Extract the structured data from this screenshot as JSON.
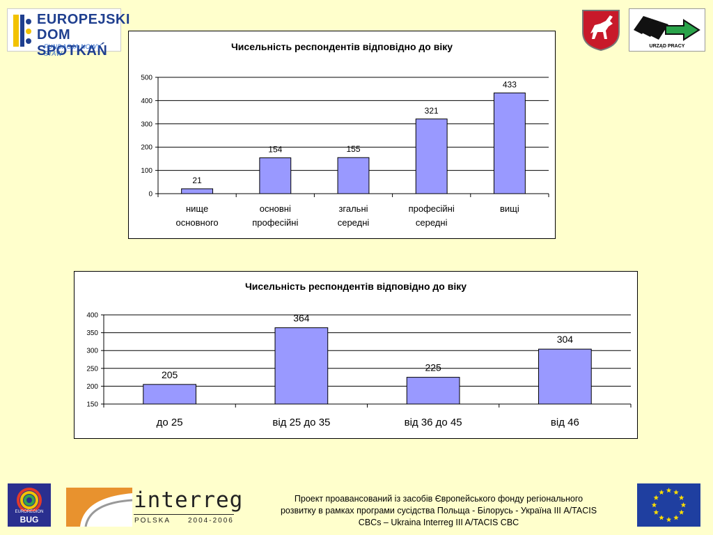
{
  "logos": {
    "eds": {
      "line1": "EUROPEJSKI",
      "line2": "DOM SPOTKAŃ",
      "line3": "FUNDACJA NOWY STAW"
    },
    "urzad": {
      "caption": "URZĄD PRACY"
    },
    "euroregion": {
      "line1": "EUROREGION",
      "line2": "BUG"
    },
    "interreg": {
      "word": "interreg",
      "polska": "POLSKA",
      "years": "2004-2006"
    }
  },
  "footer": {
    "line1": "Проект проавансований із засобів Європейського фонду регіонального",
    "line2": "розвитку в рамках програми сусідства Польща - Білорусь - Україна ІІІ A/TACIS",
    "line3": "CBCs – Ukraina Interreg III A/TACIS CBC"
  },
  "chart_data": [
    {
      "type": "bar",
      "title": "Чисельність респондентів відповідно до віку",
      "categories": [
        [
          "нище",
          "основного"
        ],
        [
          "основні",
          "професійні"
        ],
        [
          "згальні",
          "середні"
        ],
        [
          "професійні",
          "середні"
        ],
        [
          "вищі"
        ]
      ],
      "values": [
        21,
        154,
        155,
        321,
        433
      ],
      "ylim": [
        0,
        500
      ],
      "yticks": [
        0,
        100,
        200,
        300,
        400,
        500
      ],
      "grid": true,
      "bar_color": "#9999ff"
    },
    {
      "type": "bar",
      "title": "Чисельність респондентів відповідно до віку",
      "categories": [
        [
          "до 25"
        ],
        [
          "від 25 до 35"
        ],
        [
          "від 36 до 45"
        ],
        [
          "від 46"
        ]
      ],
      "values": [
        205,
        364,
        225,
        304
      ],
      "ylim": [
        150,
        400
      ],
      "yticks": [
        150,
        200,
        250,
        300,
        350,
        400
      ],
      "grid": true,
      "bar_color": "#9999ff"
    }
  ]
}
